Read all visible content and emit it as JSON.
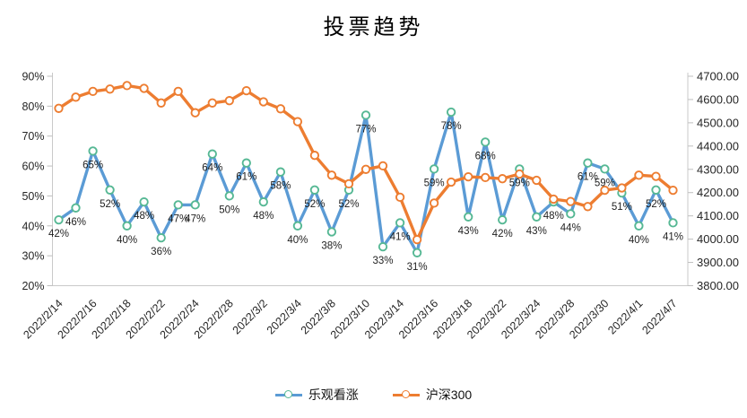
{
  "page": {
    "background": "#ffffff"
  },
  "title": "投票趋势",
  "legend": {
    "items": [
      {
        "label": "乐观看涨",
        "line_color": "#5b9bd5",
        "marker_ring": "#56b894"
      },
      {
        "label": "沪深300",
        "line_color": "#ed7d31",
        "marker_ring": "#ed7d31"
      }
    ]
  },
  "chart_data": {
    "type": "line",
    "title": "投票趋势",
    "n_points": 37,
    "x_tick_every": 2,
    "x_tick_labels": [
      "2022/2/14",
      "2022/2/16",
      "2022/2/18",
      "2022/2/22",
      "2022/2/24",
      "2022/2/28",
      "2022/3/2",
      "2022/3/4",
      "2022/3/8",
      "2022/3/10",
      "2022/3/14",
      "2022/3/16",
      "2022/3/18",
      "2022/3/22",
      "2022/3/24",
      "2022/3/28",
      "2022/3/30",
      "2022/4/1",
      "2022/4/7"
    ],
    "left_axis": {
      "min": 20,
      "max": 90,
      "step": 10,
      "format": "percent",
      "tick_labels": [
        "90%",
        "80%",
        "70%",
        "60%",
        "50%",
        "40%",
        "30%",
        "20%"
      ]
    },
    "right_axis": {
      "min": 3800,
      "max": 4700,
      "step": 100,
      "format": "2dp",
      "tick_labels": [
        "4700.00",
        "4600.00",
        "4500.00",
        "4400.00",
        "4300.00",
        "4200.00",
        "4100.00",
        "4000.00",
        "3900.00",
        "3800.00"
      ]
    },
    "grid": false,
    "legend_position": "bottom",
    "series": [
      {
        "name": "乐观看涨",
        "axis": "left",
        "unit": "%",
        "color": "#5b9bd5",
        "marker_ring": "#56b894",
        "data_labels": true,
        "values": [
          42,
          46,
          65,
          52,
          40,
          48,
          36,
          47,
          47,
          64,
          50,
          61,
          48,
          58,
          40,
          52,
          38,
          52,
          77,
          33,
          41,
          31,
          59,
          78,
          43,
          68,
          42,
          59,
          43,
          48,
          44,
          61,
          59,
          51,
          40,
          52,
          41
        ]
      },
      {
        "name": "沪深300",
        "axis": "right",
        "unit": "index",
        "color": "#ed7d31",
        "marker_ring": "#ed7d31",
        "data_labels": false,
        "values": [
          4562,
          4610,
          4635,
          4645,
          4660,
          4648,
          4585,
          4635,
          4543,
          4585,
          4595,
          4638,
          4590,
          4560,
          4505,
          4360,
          4275,
          4238,
          4300,
          4315,
          4180,
          3998,
          4155,
          4245,
          4268,
          4265,
          4260,
          4280,
          4253,
          4172,
          4162,
          4140,
          4210,
          4220,
          4275,
          4270,
          4210
        ]
      }
    ],
    "style": {
      "axis_line_color": "#c9c9c9",
      "tick_color": "#bfbfbf",
      "label_color": "#262626"
    }
  }
}
